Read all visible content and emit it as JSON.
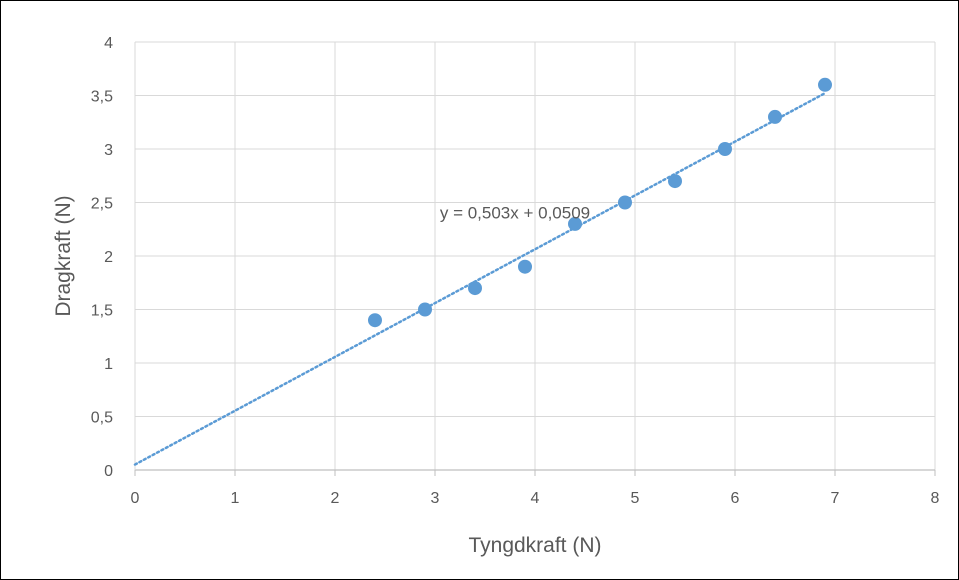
{
  "chart_data": {
    "type": "scatter",
    "xlabel": "Tyngdkraft (N)",
    "ylabel": "Dragkraft (N)",
    "xlim": [
      0,
      8
    ],
    "ylim": [
      0,
      4
    ],
    "x_ticks": [
      "0",
      "1",
      "2",
      "3",
      "4",
      "5",
      "6",
      "7",
      "8"
    ],
    "y_ticks": [
      "0",
      "0,5",
      "1",
      "1,5",
      "2",
      "2,5",
      "3",
      "3,5",
      "4"
    ],
    "grid": true,
    "legend": "none",
    "series": [
      {
        "points": [
          {
            "x": 2.4,
            "y": 1.4
          },
          {
            "x": 2.9,
            "y": 1.5
          },
          {
            "x": 3.4,
            "y": 1.7
          },
          {
            "x": 3.9,
            "y": 1.9
          },
          {
            "x": 4.4,
            "y": 2.3
          },
          {
            "x": 4.9,
            "y": 2.5
          },
          {
            "x": 5.4,
            "y": 2.7
          },
          {
            "x": 5.9,
            "y": 3.0
          },
          {
            "x": 6.4,
            "y": 3.3
          },
          {
            "x": 6.9,
            "y": 3.6
          }
        ],
        "color": "#5B9BD5"
      }
    ],
    "trendline": {
      "type": "linear",
      "slope": 0.503,
      "intercept": 0.0509,
      "x_range": [
        0,
        6.9
      ],
      "style": "dotted",
      "color": "#5B9BD5",
      "label": "y = 0,503x + 0,0509"
    },
    "colors": {
      "grid": "#D9D9D9",
      "text": "#595959",
      "axis": "#BFBFBF"
    }
  }
}
